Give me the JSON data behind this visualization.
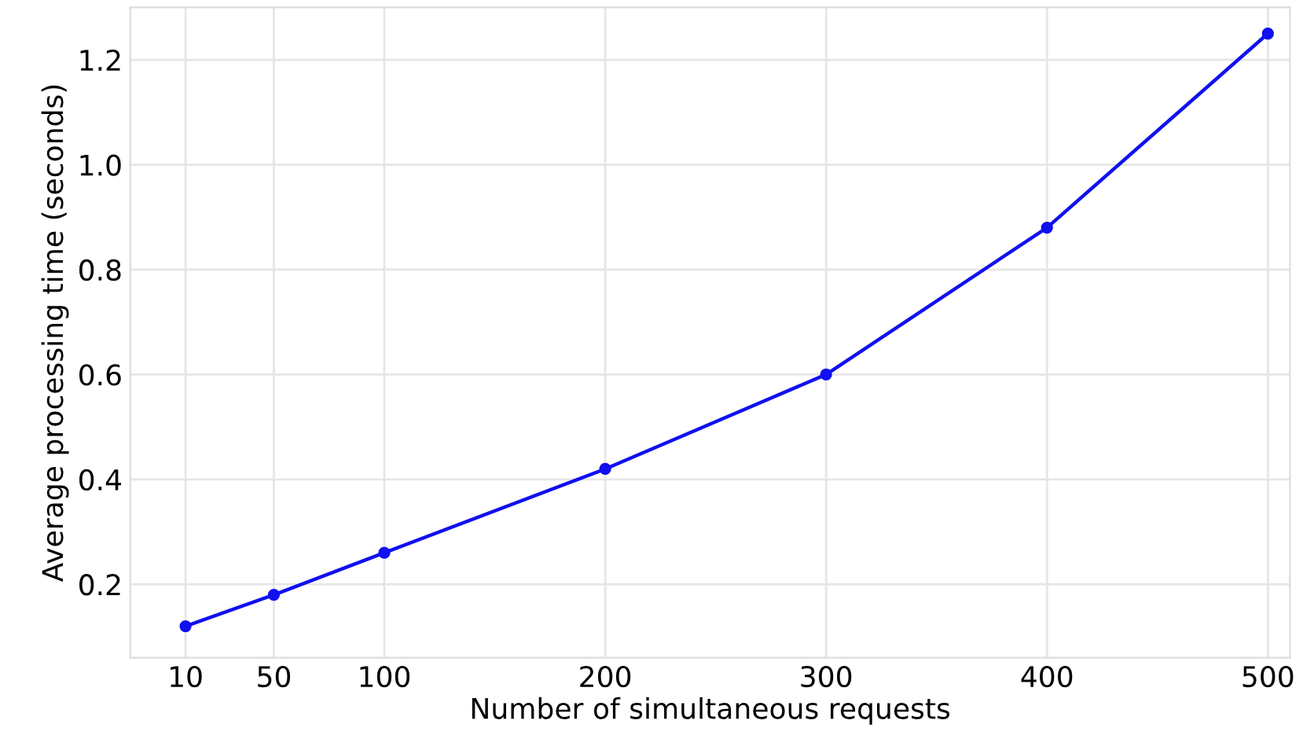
{
  "chart_data": {
    "type": "line",
    "xlabel": "Number of simultaneous requests",
    "ylabel": "Average processing time (seconds)",
    "x": [
      10,
      50,
      100,
      200,
      300,
      400,
      500
    ],
    "series": [
      {
        "color": "#1010f0",
        "values": [
          0.12,
          0.18,
          0.26,
          0.42,
          0.6,
          0.88,
          1.25
        ]
      }
    ],
    "xlim": [
      -15,
      510
    ],
    "xticks": [
      10,
      50,
      100,
      200,
      300,
      400,
      500
    ],
    "ylim": [
      0.06,
      1.3
    ],
    "yticks": [
      0.2,
      0.4,
      0.6,
      0.8,
      {
        "value": 1.0,
        "label": "1.0"
      },
      1.2
    ],
    "grid": true,
    "marker": "circle",
    "line_style": "solid"
  }
}
